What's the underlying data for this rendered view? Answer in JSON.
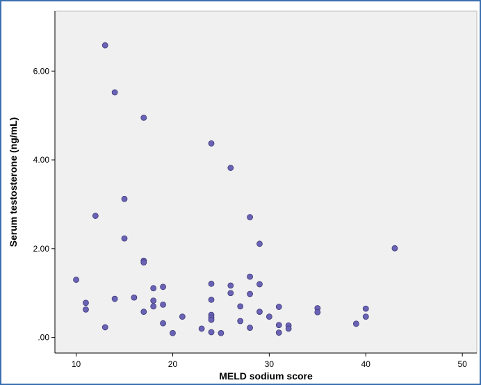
{
  "chart_data": {
    "type": "scatter",
    "title": "",
    "xlabel": "MELD sodium score",
    "ylabel": "Serum testosterone (ng/mL)",
    "xlim": [
      7.8,
      51.5
    ],
    "ylim": [
      -0.35,
      7.35
    ],
    "xticks": [
      10,
      20,
      30,
      40,
      50
    ],
    "xtick_labels": [
      "10",
      "20",
      "30",
      "40",
      "50"
    ],
    "yticks": [
      0,
      2,
      4,
      6
    ],
    "ytick_labels": [
      ".00",
      "2.00",
      "4.00",
      "6.00"
    ],
    "grid": false,
    "colors": {
      "plot_background": "#f0f0f0",
      "marker": "#6a63b5",
      "marker_edge": "#3e3a7a"
    },
    "series": [
      {
        "points": [
          {
            "x": 10,
            "y": 1.3
          },
          {
            "x": 11,
            "y": 0.78
          },
          {
            "x": 11,
            "y": 0.63
          },
          {
            "x": 12,
            "y": 2.74
          },
          {
            "x": 13,
            "y": 6.58
          },
          {
            "x": 13,
            "y": 0.23
          },
          {
            "x": 14,
            "y": 5.52
          },
          {
            "x": 14,
            "y": 0.87
          },
          {
            "x": 15,
            "y": 3.12
          },
          {
            "x": 15,
            "y": 2.23
          },
          {
            "x": 16,
            "y": 0.9
          },
          {
            "x": 17,
            "y": 4.95
          },
          {
            "x": 17,
            "y": 1.73
          },
          {
            "x": 17,
            "y": 1.69
          },
          {
            "x": 17,
            "y": 0.58
          },
          {
            "x": 18,
            "y": 1.11
          },
          {
            "x": 18,
            "y": 0.83
          },
          {
            "x": 18,
            "y": 0.7
          },
          {
            "x": 19,
            "y": 1.14
          },
          {
            "x": 19,
            "y": 0.74
          },
          {
            "x": 19,
            "y": 0.32
          },
          {
            "x": 20,
            "y": 0.1
          },
          {
            "x": 21,
            "y": 0.47
          },
          {
            "x": 23,
            "y": 0.2
          },
          {
            "x": 24,
            "y": 4.37
          },
          {
            "x": 24,
            "y": 1.21
          },
          {
            "x": 24,
            "y": 0.85
          },
          {
            "x": 24,
            "y": 0.51
          },
          {
            "x": 24,
            "y": 0.45
          },
          {
            "x": 24,
            "y": 0.4
          },
          {
            "x": 24,
            "y": 0.12
          },
          {
            "x": 25,
            "y": 0.1
          },
          {
            "x": 26,
            "y": 3.82
          },
          {
            "x": 26,
            "y": 1.17
          },
          {
            "x": 26,
            "y": 1.0
          },
          {
            "x": 27,
            "y": 0.7
          },
          {
            "x": 27,
            "y": 0.37
          },
          {
            "x": 28,
            "y": 2.71
          },
          {
            "x": 28,
            "y": 1.37
          },
          {
            "x": 28,
            "y": 0.98
          },
          {
            "x": 28,
            "y": 0.22
          },
          {
            "x": 29,
            "y": 2.11
          },
          {
            "x": 29,
            "y": 1.2
          },
          {
            "x": 29,
            "y": 0.58
          },
          {
            "x": 30,
            "y": 0.47
          },
          {
            "x": 31,
            "y": 0.69
          },
          {
            "x": 31,
            "y": 0.28
          },
          {
            "x": 31,
            "y": 0.11
          },
          {
            "x": 32,
            "y": 0.27
          },
          {
            "x": 32,
            "y": 0.2
          },
          {
            "x": 35,
            "y": 0.66
          },
          {
            "x": 35,
            "y": 0.57
          },
          {
            "x": 39,
            "y": 0.31
          },
          {
            "x": 40,
            "y": 0.65
          },
          {
            "x": 40,
            "y": 0.47
          },
          {
            "x": 43,
            "y": 2.01
          }
        ]
      }
    ]
  }
}
